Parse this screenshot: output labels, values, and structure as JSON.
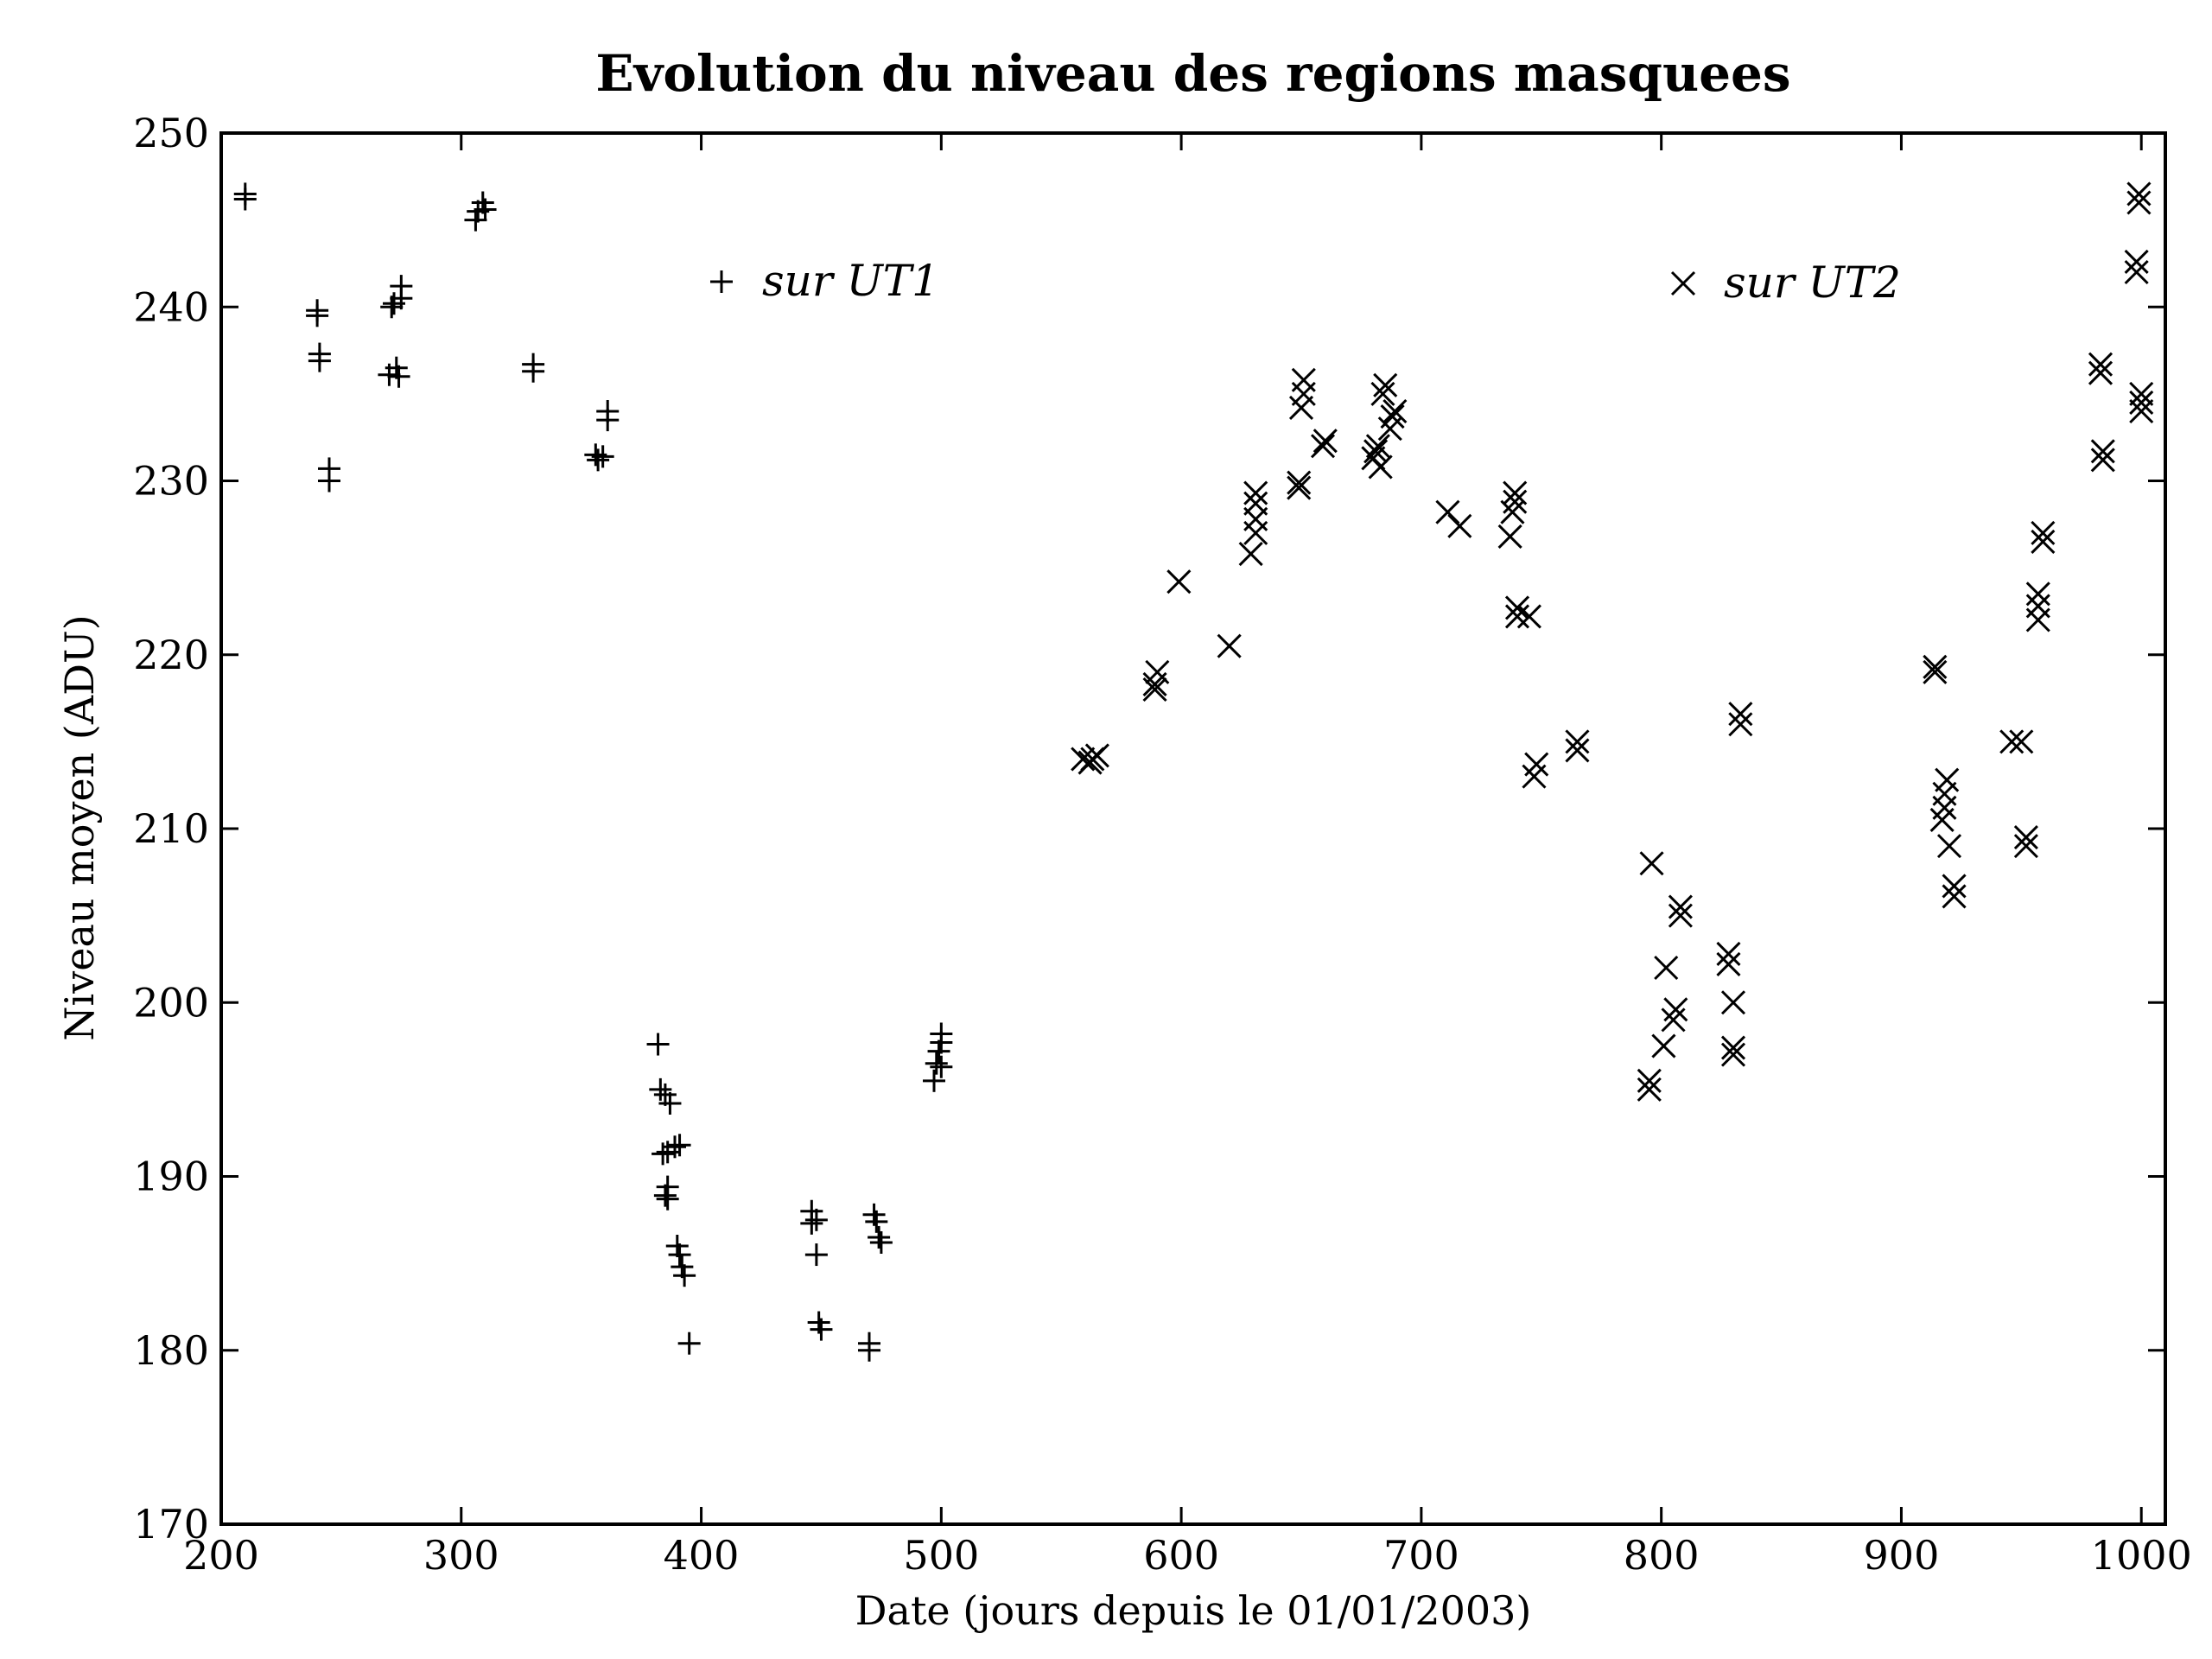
{
  "chart_data": {
    "type": "scatter",
    "title": "Evolution du niveau des regions masquees",
    "xlabel": "Date (jours depuis le 01/01/2003)",
    "ylabel": "Niveau moyen (ADU)",
    "xlim": [
      200,
      1010
    ],
    "ylim": [
      170,
      250
    ],
    "xticks": [
      200,
      300,
      400,
      500,
      600,
      700,
      800,
      900,
      1000
    ],
    "yticks": [
      170,
      180,
      190,
      200,
      210,
      220,
      230,
      240,
      250
    ],
    "grid": false,
    "legend_placement": "top, inline per series",
    "series": [
      {
        "name": "sur UT1",
        "marker": "plus",
        "color": "#000000",
        "points": [
          [
            210,
            246.5
          ],
          [
            210,
            246.2
          ],
          [
            240,
            239.8
          ],
          [
            240,
            239.5
          ],
          [
            241,
            237.3
          ],
          [
            241,
            236.9
          ],
          [
            245,
            230.7
          ],
          [
            245,
            230.0
          ],
          [
            271,
            240.0
          ],
          [
            272,
            240.2
          ],
          [
            275,
            241.2
          ],
          [
            275,
            240.5
          ],
          [
            270,
            236.1
          ],
          [
            273,
            236.5
          ],
          [
            274,
            236.0
          ],
          [
            306,
            245.0
          ],
          [
            307,
            245.5
          ],
          [
            309,
            246.0
          ],
          [
            310,
            245.6
          ],
          [
            330,
            236.7
          ],
          [
            330,
            236.3
          ],
          [
            356,
            231.5
          ],
          [
            357,
            231.2
          ],
          [
            359,
            231.4
          ],
          [
            361,
            233.5
          ],
          [
            361,
            234.0
          ],
          [
            382,
            197.6
          ],
          [
            383,
            195.0
          ],
          [
            385,
            194.7
          ],
          [
            384,
            191.3
          ],
          [
            386,
            191.4
          ],
          [
            387,
            194.2
          ],
          [
            386,
            189.4
          ],
          [
            385,
            188.9
          ],
          [
            386,
            188.7
          ],
          [
            389,
            191.7
          ],
          [
            391,
            191.8
          ],
          [
            390,
            186.0
          ],
          [
            391,
            185.5
          ],
          [
            392,
            184.8
          ],
          [
            393,
            184.3
          ],
          [
            395,
            180.4
          ],
          [
            446,
            188.0
          ],
          [
            446,
            187.3
          ],
          [
            448,
            187.5
          ],
          [
            448,
            185.5
          ],
          [
            449,
            181.6
          ],
          [
            450,
            181.2
          ],
          [
            470,
            180.4
          ],
          [
            470,
            180.0
          ],
          [
            472,
            187.8
          ],
          [
            473,
            187.4
          ],
          [
            475,
            186.2
          ],
          [
            474,
            186.5
          ],
          [
            497,
            195.5
          ],
          [
            498,
            196.5
          ],
          [
            499,
            197.2
          ],
          [
            500,
            198.2
          ],
          [
            500,
            197.7
          ],
          [
            500,
            196.3
          ]
        ]
      },
      {
        "name": "sur UT2",
        "marker": "x",
        "color": "#000000",
        "points": [
          [
            559,
            214
          ],
          [
            562,
            213.8
          ],
          [
            565,
            214.2
          ],
          [
            563,
            214.0
          ],
          [
            589,
            218.3
          ],
          [
            589,
            218
          ],
          [
            590,
            219.0
          ],
          [
            599,
            224.2
          ],
          [
            620,
            220.5
          ],
          [
            629,
            225.8
          ],
          [
            631,
            227
          ],
          [
            631,
            227.8
          ],
          [
            631,
            228.7
          ],
          [
            631,
            229.3
          ],
          [
            649,
            229.6
          ],
          [
            649,
            229.9
          ],
          [
            650,
            234.2
          ],
          [
            651,
            235
          ],
          [
            651,
            235.8
          ],
          [
            659,
            232
          ],
          [
            660,
            232.3
          ],
          [
            680,
            231.3
          ],
          [
            681,
            231.7
          ],
          [
            682,
            232
          ],
          [
            683,
            230.8
          ],
          [
            684,
            235
          ],
          [
            685,
            235.5
          ],
          [
            687,
            233
          ],
          [
            688,
            233.7
          ],
          [
            689,
            234
          ],
          [
            711,
            228.2
          ],
          [
            716,
            227.4
          ],
          [
            737,
            226.8
          ],
          [
            738,
            228.2
          ],
          [
            739,
            228.8
          ],
          [
            739,
            229.3
          ],
          [
            740,
            222.2
          ],
          [
            740,
            222.7
          ],
          [
            745,
            222.2
          ],
          [
            747,
            213
          ],
          [
            748,
            213.7
          ],
          [
            765,
            215
          ],
          [
            765,
            214.5
          ],
          [
            795,
            195
          ],
          [
            795,
            195.5
          ],
          [
            796,
            208
          ],
          [
            801,
            197.5
          ],
          [
            802,
            202
          ],
          [
            805,
            199
          ],
          [
            806,
            199.6
          ],
          [
            808,
            205
          ],
          [
            808,
            205.5
          ],
          [
            828,
            202.2
          ],
          [
            828,
            202.8
          ],
          [
            830,
            200
          ],
          [
            830,
            197
          ],
          [
            830,
            197.4
          ],
          [
            833,
            216
          ],
          [
            833,
            216.6
          ],
          [
            914,
            219
          ],
          [
            914,
            219.3
          ],
          [
            917,
            210.5
          ],
          [
            918,
            211.2
          ],
          [
            918,
            212
          ],
          [
            919,
            212.8
          ],
          [
            920,
            209
          ],
          [
            922,
            206.7
          ],
          [
            922,
            206.1
          ],
          [
            946,
            215
          ],
          [
            950,
            215
          ],
          [
            952,
            209
          ],
          [
            952,
            209.5
          ],
          [
            957,
            222
          ],
          [
            957,
            222.8
          ],
          [
            957,
            223.5
          ],
          [
            959,
            226.5
          ],
          [
            959,
            227
          ],
          [
            983,
            236.2
          ],
          [
            983,
            236.7
          ],
          [
            984,
            231.2
          ],
          [
            984,
            231.7
          ],
          [
            998,
            242
          ],
          [
            998,
            242.6
          ],
          [
            999,
            246
          ],
          [
            999,
            246.5
          ],
          [
            1000,
            234
          ],
          [
            1000,
            234.5
          ],
          [
            1000,
            235
          ]
        ]
      }
    ]
  }
}
